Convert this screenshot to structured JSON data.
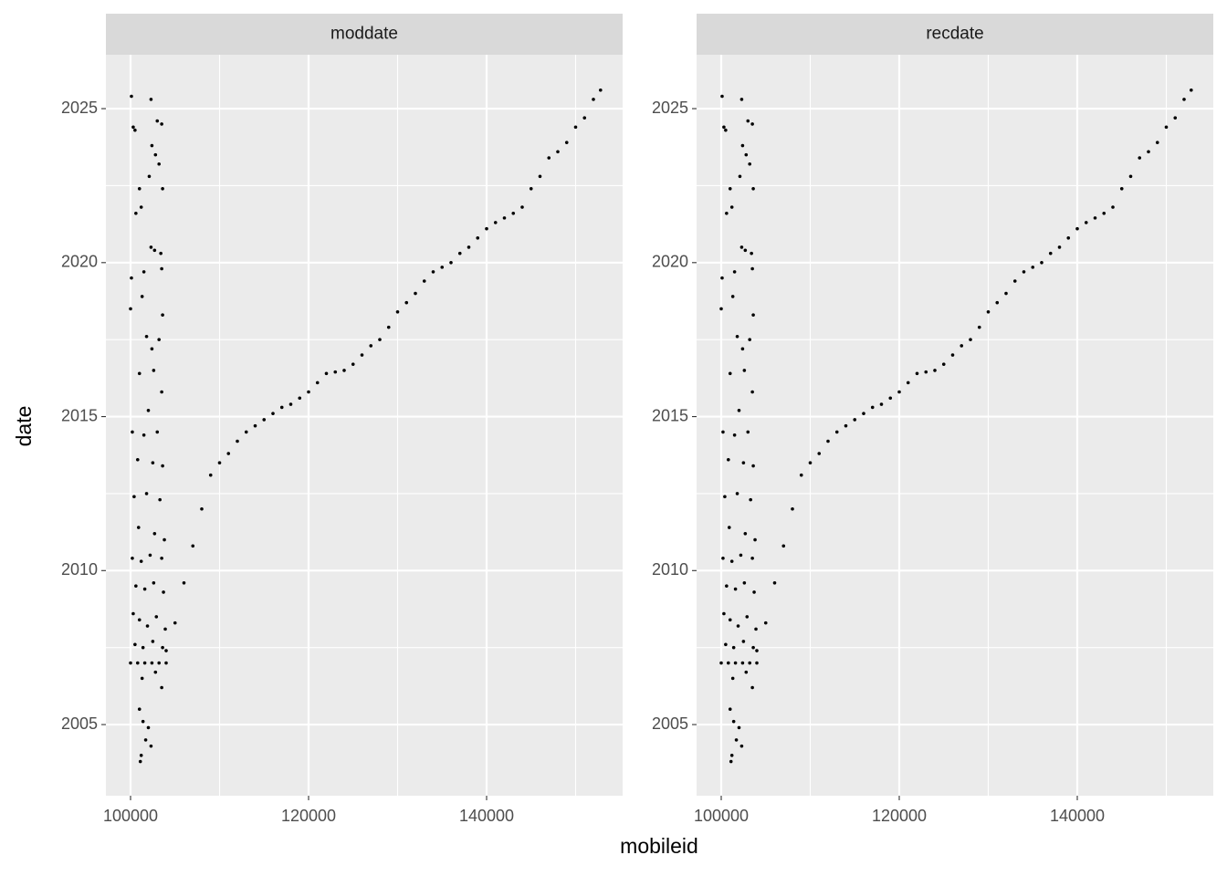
{
  "chart_data": [
    {
      "type": "scatter",
      "title": "moddate",
      "x_label": "mobileid",
      "y_label": "date",
      "color": "#000000",
      "grid": true,
      "xlim": [
        97231,
        155282
      ],
      "ylim": [
        2002.69,
        2026.75
      ],
      "xticks": [
        100000,
        120000,
        140000
      ],
      "yticks": [
        2005,
        2010,
        2015,
        2020,
        2025
      ],
      "xminor": [
        110000,
        130000,
        150000
      ],
      "yminor": [
        2007.5,
        2012.5,
        2017.5,
        2022.5
      ],
      "x": [
        100100,
        100300,
        100500,
        102300,
        103000,
        103500,
        102400,
        102800,
        103200,
        102100,
        101000,
        103600,
        100600,
        101200,
        102300,
        102700,
        103400,
        100100,
        101500,
        103500,
        101300,
        100000,
        103600,
        101800,
        102400,
        103200,
        101000,
        102600,
        103500,
        102000,
        100200,
        101500,
        103000,
        100800,
        102500,
        103600,
        100400,
        101800,
        103300,
        100900,
        102700,
        103800,
        100200,
        101200,
        102200,
        103500,
        100600,
        101600,
        102600,
        103700,
        100300,
        101000,
        101900,
        102900,
        103900,
        100500,
        101400,
        102500,
        103600,
        100000,
        100800,
        101600,
        102400,
        103200,
        104000,
        101300,
        102800,
        103500,
        101000,
        101400,
        101700,
        101200,
        101100,
        102000,
        102300,
        104000,
        105000,
        106000,
        107000,
        108000,
        109000,
        110000,
        111000,
        112000,
        113000,
        114000,
        115000,
        116000,
        117000,
        118000,
        119000,
        120000,
        121000,
        122000,
        123000,
        124000,
        125000,
        126000,
        127000,
        128000,
        129000,
        130000,
        131000,
        132000,
        133000,
        134000,
        135000,
        136000,
        137000,
        138000,
        139000,
        140000,
        141000,
        142000,
        143000,
        144000,
        145000,
        146000,
        147000,
        148000,
        149000,
        150000,
        151000,
        152000,
        152800
      ],
      "y": [
        2025.4,
        2024.4,
        2024.3,
        2025.3,
        2024.6,
        2024.5,
        2023.8,
        2023.5,
        2023.2,
        2022.8,
        2022.4,
        2022.4,
        2021.6,
        2021.8,
        2020.5,
        2020.4,
        2020.3,
        2019.5,
        2019.7,
        2019.8,
        2018.9,
        2018.5,
        2018.3,
        2017.6,
        2017.2,
        2017.5,
        2016.4,
        2016.5,
        2015.8,
        2015.2,
        2014.5,
        2014.4,
        2014.5,
        2013.6,
        2013.5,
        2013.4,
        2012.4,
        2012.5,
        2012.3,
        2011.4,
        2011.2,
        2011.0,
        2010.4,
        2010.3,
        2010.5,
        2010.4,
        2009.5,
        2009.4,
        2009.6,
        2009.3,
        2008.6,
        2008.4,
        2008.2,
        2008.5,
        2008.1,
        2007.6,
        2007.5,
        2007.7,
        2007.5,
        2007.0,
        2007.0,
        2007.0,
        2007.0,
        2007.0,
        2007.0,
        2006.5,
        2006.7,
        2006.2,
        2005.5,
        2005.1,
        2004.5,
        2004.0,
        2003.8,
        2004.9,
        2004.3,
        2007.4,
        2008.3,
        2009.6,
        2010.8,
        2012.0,
        2013.1,
        2013.5,
        2013.8,
        2014.2,
        2014.5,
        2014.7,
        2014.9,
        2015.1,
        2015.3,
        2015.4,
        2015.6,
        2015.8,
        2016.1,
        2016.4,
        2016.45,
        2016.5,
        2016.7,
        2017.0,
        2017.3,
        2017.5,
        2017.9,
        2018.4,
        2018.7,
        2019.0,
        2019.4,
        2019.7,
        2019.85,
        2020.0,
        2020.3,
        2020.5,
        2020.8,
        2021.1,
        2021.3,
        2021.45,
        2021.6,
        2021.8,
        2022.4,
        2022.8,
        2023.4,
        2023.6,
        2023.9,
        2024.4,
        2024.7,
        2025.3,
        2025.6
      ]
    },
    {
      "type": "scatter",
      "title": "recdate",
      "color": "#000000",
      "grid": true,
      "xlim": [
        97231,
        155282
      ],
      "ylim": [
        2002.69,
        2026.75
      ],
      "xticks": [
        100000,
        120000,
        140000
      ],
      "yticks": [
        2005,
        2010,
        2015,
        2020,
        2025
      ],
      "xminor": [
        110000,
        130000,
        150000
      ],
      "yminor": [
        2007.5,
        2012.5,
        2017.5,
        2022.5
      ],
      "x": [
        100100,
        100300,
        100500,
        102300,
        103000,
        103500,
        102400,
        102800,
        103200,
        102100,
        101000,
        103600,
        100600,
        101200,
        102300,
        102700,
        103400,
        100100,
        101500,
        103500,
        101300,
        100000,
        103600,
        101800,
        102400,
        103200,
        101000,
        102600,
        103500,
        102000,
        100200,
        101500,
        103000,
        100800,
        102500,
        103600,
        100400,
        101800,
        103300,
        100900,
        102700,
        103800,
        100200,
        101200,
        102200,
        103500,
        100600,
        101600,
        102600,
        103700,
        100300,
        101000,
        101900,
        102900,
        103900,
        100500,
        101400,
        102500,
        103600,
        100000,
        100800,
        101600,
        102400,
        103200,
        104000,
        101300,
        102800,
        103500,
        101000,
        101400,
        101700,
        101200,
        101100,
        102000,
        102300,
        104000,
        105000,
        106000,
        107000,
        108000,
        109000,
        110000,
        111000,
        112000,
        113000,
        114000,
        115000,
        116000,
        117000,
        118000,
        119000,
        120000,
        121000,
        122000,
        123000,
        124000,
        125000,
        126000,
        127000,
        128000,
        129000,
        130000,
        131000,
        132000,
        133000,
        134000,
        135000,
        136000,
        137000,
        138000,
        139000,
        140000,
        141000,
        142000,
        143000,
        144000,
        145000,
        146000,
        147000,
        148000,
        149000,
        150000,
        151000,
        152000,
        152800
      ],
      "y": [
        2025.4,
        2024.4,
        2024.3,
        2025.3,
        2024.6,
        2024.5,
        2023.8,
        2023.5,
        2023.2,
        2022.8,
        2022.4,
        2022.4,
        2021.6,
        2021.8,
        2020.5,
        2020.4,
        2020.3,
        2019.5,
        2019.7,
        2019.8,
        2018.9,
        2018.5,
        2018.3,
        2017.6,
        2017.2,
        2017.5,
        2016.4,
        2016.5,
        2015.8,
        2015.2,
        2014.5,
        2014.4,
        2014.5,
        2013.6,
        2013.5,
        2013.4,
        2012.4,
        2012.5,
        2012.3,
        2011.4,
        2011.2,
        2011.0,
        2010.4,
        2010.3,
        2010.5,
        2010.4,
        2009.5,
        2009.4,
        2009.6,
        2009.3,
        2008.6,
        2008.4,
        2008.2,
        2008.5,
        2008.1,
        2007.6,
        2007.5,
        2007.7,
        2007.5,
        2007.0,
        2007.0,
        2007.0,
        2007.0,
        2007.0,
        2007.0,
        2006.5,
        2006.7,
        2006.2,
        2005.5,
        2005.1,
        2004.5,
        2004.0,
        2003.8,
        2004.9,
        2004.3,
        2007.4,
        2008.3,
        2009.6,
        2010.8,
        2012.0,
        2013.1,
        2013.5,
        2013.8,
        2014.2,
        2014.5,
        2014.7,
        2014.9,
        2015.1,
        2015.3,
        2015.4,
        2015.6,
        2015.8,
        2016.1,
        2016.4,
        2016.45,
        2016.5,
        2016.7,
        2017.0,
        2017.3,
        2017.5,
        2017.9,
        2018.4,
        2018.7,
        2019.0,
        2019.4,
        2019.7,
        2019.85,
        2020.0,
        2020.3,
        2020.5,
        2020.8,
        2021.1,
        2021.3,
        2021.45,
        2021.6,
        2021.8,
        2022.4,
        2022.8,
        2023.4,
        2023.6,
        2023.9,
        2024.4,
        2024.7,
        2025.3,
        2025.6
      ]
    }
  ]
}
